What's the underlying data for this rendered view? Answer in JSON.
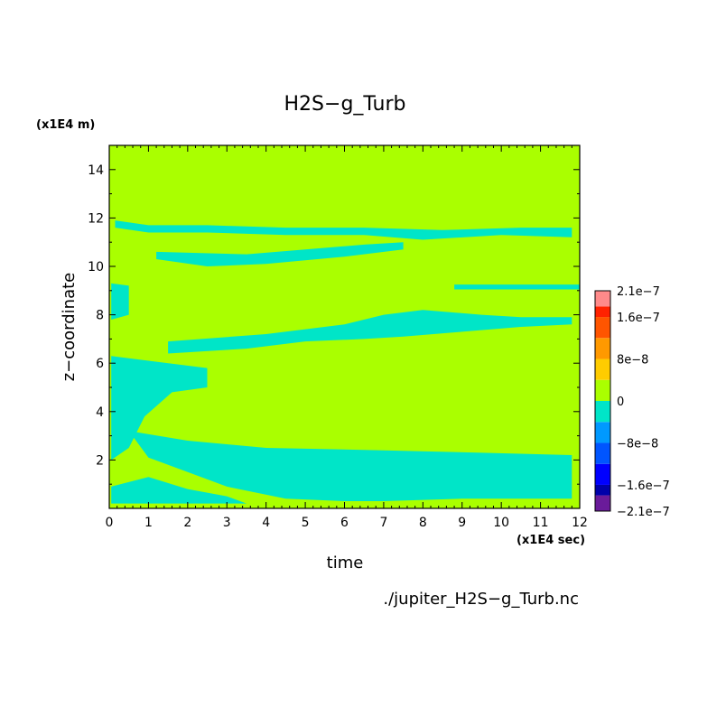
{
  "chart_data": {
    "type": "heatmap",
    "title": "H2S−g_Turb",
    "xlabel": "time",
    "ylabel": "z−coordinate",
    "x_unit": "(x1E4 sec)",
    "y_unit": "(x1E4 m)",
    "source": "./jupiter_H2S−g_Turb.nc",
    "xlim": [
      0,
      12
    ],
    "ylim": [
      0,
      15
    ],
    "x_ticks": [
      "0",
      "1",
      "2",
      "3",
      "4",
      "5",
      "6",
      "7",
      "8",
      "9",
      "10",
      "11",
      "12"
    ],
    "y_ticks": [
      "2",
      "4",
      "6",
      "8",
      "10",
      "12",
      "14"
    ],
    "colorbar": {
      "labels": [
        "2.1e−7",
        "1.6e−7",
        "8e−8",
        "0",
        "−8e−8",
        "−1.6e−7",
        "−2.1e−7"
      ],
      "label_values": [
        2.1e-07,
        1.6e-07,
        8e-08,
        0,
        -8e-08,
        -1.6e-07,
        -2.1e-07
      ],
      "levels": [
        -2.1e-07,
        -1.8e-07,
        -1.6e-07,
        -1.2e-07,
        -8e-08,
        -4e-08,
        0,
        4e-08,
        8e-08,
        1.2e-07,
        1.6e-07,
        1.8e-07,
        2.1e-07
      ],
      "colors": [
        "#6a1b9a",
        "#0000aa",
        "#0000ff",
        "#0055ff",
        "#0099ff",
        "#00e5c8",
        "#aaff00",
        "#ffcc00",
        "#ff9900",
        "#ff5500",
        "#ff2200",
        "#ff8a8a"
      ]
    },
    "background_color": "#aaff00",
    "negative_color": "#00e5c8",
    "regions": [
      {
        "value": "slightly negative",
        "polygon": [
          [
            0.15,
            11.9
          ],
          [
            1.0,
            11.7
          ],
          [
            2.5,
            11.7
          ],
          [
            4.5,
            11.6
          ],
          [
            6.5,
            11.6
          ],
          [
            8.5,
            11.5
          ],
          [
            10.5,
            11.6
          ],
          [
            11.8,
            11.6
          ],
          [
            11.8,
            11.2
          ],
          [
            10.0,
            11.3
          ],
          [
            8.0,
            11.1
          ],
          [
            6.5,
            11.3
          ],
          [
            4.5,
            11.3
          ],
          [
            2.5,
            11.4
          ],
          [
            1.0,
            11.4
          ],
          [
            0.15,
            11.6
          ]
        ]
      },
      {
        "value": "slightly negative",
        "polygon": [
          [
            1.2,
            10.6
          ],
          [
            3.5,
            10.5
          ],
          [
            6.5,
            10.9
          ],
          [
            7.5,
            11.0
          ],
          [
            7.5,
            10.7
          ],
          [
            6.0,
            10.4
          ],
          [
            4.0,
            10.1
          ],
          [
            2.5,
            10.0
          ],
          [
            1.2,
            10.3
          ]
        ]
      },
      {
        "value": "slightly negative",
        "polygon": [
          [
            0.05,
            9.3
          ],
          [
            0.5,
            9.2
          ],
          [
            0.5,
            8.0
          ],
          [
            0.05,
            7.8
          ]
        ]
      },
      {
        "value": "slightly negative",
        "polygon": [
          [
            8.8,
            9.25
          ],
          [
            12.0,
            9.25
          ],
          [
            12.0,
            9.05
          ],
          [
            8.8,
            9.05
          ]
        ]
      },
      {
        "value": "slightly negative",
        "polygon": [
          [
            1.5,
            6.9
          ],
          [
            4.0,
            7.2
          ],
          [
            6.0,
            7.6
          ],
          [
            7.0,
            8.0
          ],
          [
            8.0,
            8.2
          ],
          [
            9.5,
            8.0
          ],
          [
            10.5,
            7.9
          ],
          [
            11.8,
            7.9
          ],
          [
            11.8,
            7.6
          ],
          [
            10.5,
            7.5
          ],
          [
            9.0,
            7.3
          ],
          [
            7.5,
            7.1
          ],
          [
            6.5,
            7.0
          ],
          [
            5.0,
            6.9
          ],
          [
            3.5,
            6.6
          ],
          [
            1.5,
            6.4
          ]
        ]
      },
      {
        "value": "slightly negative",
        "polygon": [
          [
            0.05,
            6.3
          ],
          [
            1.0,
            6.1
          ],
          [
            2.5,
            5.8
          ],
          [
            2.5,
            5.0
          ],
          [
            1.6,
            4.8
          ],
          [
            0.9,
            3.8
          ],
          [
            0.5,
            2.5
          ],
          [
            0.05,
            2.0
          ]
        ]
      },
      {
        "value": "slightly negative",
        "polygon": [
          [
            0.5,
            3.2
          ],
          [
            2.0,
            2.8
          ],
          [
            4.0,
            2.5
          ],
          [
            7.0,
            2.4
          ],
          [
            9.5,
            2.3
          ],
          [
            11.8,
            2.2
          ],
          [
            11.8,
            0.4
          ],
          [
            9.0,
            0.4
          ],
          [
            7.0,
            0.3
          ],
          [
            6.0,
            0.3
          ],
          [
            4.5,
            0.4
          ],
          [
            3.0,
            0.9
          ],
          [
            2.0,
            1.5
          ],
          [
            1.0,
            2.1
          ]
        ]
      },
      {
        "value": "slightly negative",
        "polygon": [
          [
            0.05,
            0.9
          ],
          [
            1.0,
            1.3
          ],
          [
            2.0,
            0.8
          ],
          [
            3.0,
            0.5
          ],
          [
            3.5,
            0.2
          ],
          [
            0.05,
            0.2
          ]
        ]
      }
    ]
  }
}
